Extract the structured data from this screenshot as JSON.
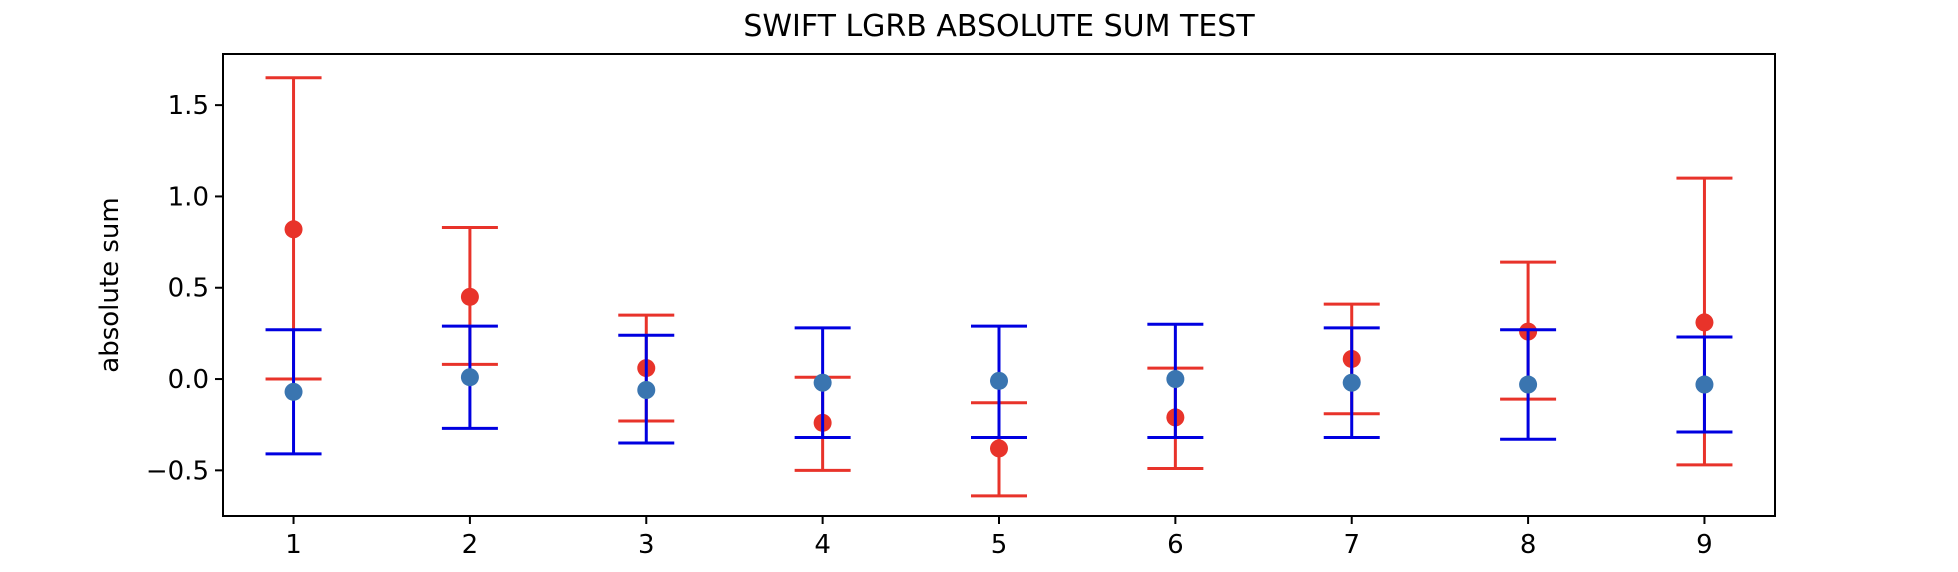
{
  "chart_data": {
    "type": "scatter",
    "title": "SWIFT LGRB ABSOLUTE SUM TEST",
    "xlabel": "",
    "ylabel": "absolute sum",
    "x": [
      1,
      2,
      3,
      4,
      5,
      6,
      7,
      8,
      9
    ],
    "xlim": [
      0.6,
      9.4
    ],
    "ylim": [
      -0.75,
      1.78
    ],
    "yticks": [
      -0.5,
      0.0,
      0.5,
      1.0,
      1.5
    ],
    "ytick_labels": [
      "−0.5",
      "0.0",
      "0.5",
      "1.0",
      "1.5"
    ],
    "xtick_labels": [
      "1",
      "2",
      "3",
      "4",
      "5",
      "6",
      "7",
      "8",
      "9"
    ],
    "grid": false,
    "series": [
      {
        "color": "#e8332a",
        "marker_color": "#e8332a",
        "values": [
          0.82,
          0.45,
          0.06,
          -0.24,
          -0.38,
          -0.21,
          0.11,
          0.26,
          0.31
        ],
        "upper": [
          1.65,
          0.83,
          0.35,
          0.01,
          -0.13,
          0.06,
          0.41,
          0.64,
          1.1
        ],
        "lower": [
          0.0,
          0.08,
          -0.23,
          -0.5,
          -0.64,
          -0.49,
          -0.19,
          -0.11,
          -0.47
        ]
      },
      {
        "color": "#0000e0",
        "marker_color": "#3a75b0",
        "values": [
          -0.07,
          0.01,
          -0.06,
          -0.02,
          -0.01,
          0.0,
          -0.02,
          -0.03,
          -0.03
        ],
        "upper": [
          0.27,
          0.29,
          0.24,
          0.28,
          0.29,
          0.3,
          0.28,
          0.27,
          0.23
        ],
        "lower": [
          -0.41,
          -0.27,
          -0.35,
          -0.32,
          -0.32,
          -0.32,
          -0.32,
          -0.33,
          -0.29
        ]
      }
    ]
  }
}
